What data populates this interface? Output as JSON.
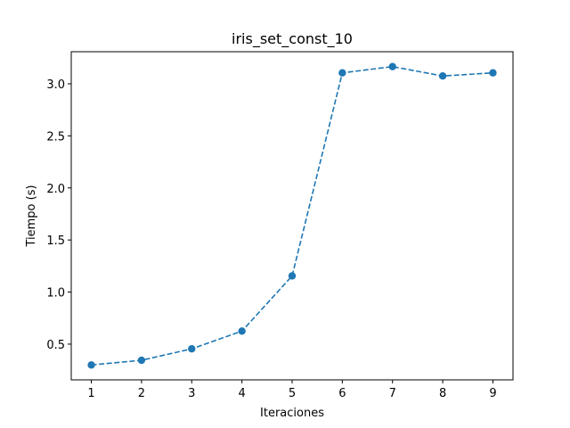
{
  "chart_data": {
    "type": "line",
    "title": "iris_set_const_10",
    "xlabel": "Iteraciones",
    "ylabel": "Tiempo (s)",
    "x": [
      1,
      2,
      3,
      4,
      5,
      6,
      7,
      8,
      9
    ],
    "series": [
      {
        "values": [
          0.3,
          0.345,
          0.455,
          0.625,
          1.155,
          3.105,
          3.165,
          3.075,
          3.105
        ],
        "color": "#1f77b4",
        "line_style": "dashed",
        "marker": "circle"
      }
    ],
    "xticks": [
      "1",
      "2",
      "3",
      "4",
      "5",
      "6",
      "7",
      "8",
      "9"
    ],
    "yticks": [
      "0.5",
      "1.0",
      "1.5",
      "2.0",
      "2.5",
      "3.0"
    ],
    "xlim": [
      0.6,
      9.4
    ],
    "ylim": [
      0.157,
      3.308
    ],
    "grid": false
  }
}
